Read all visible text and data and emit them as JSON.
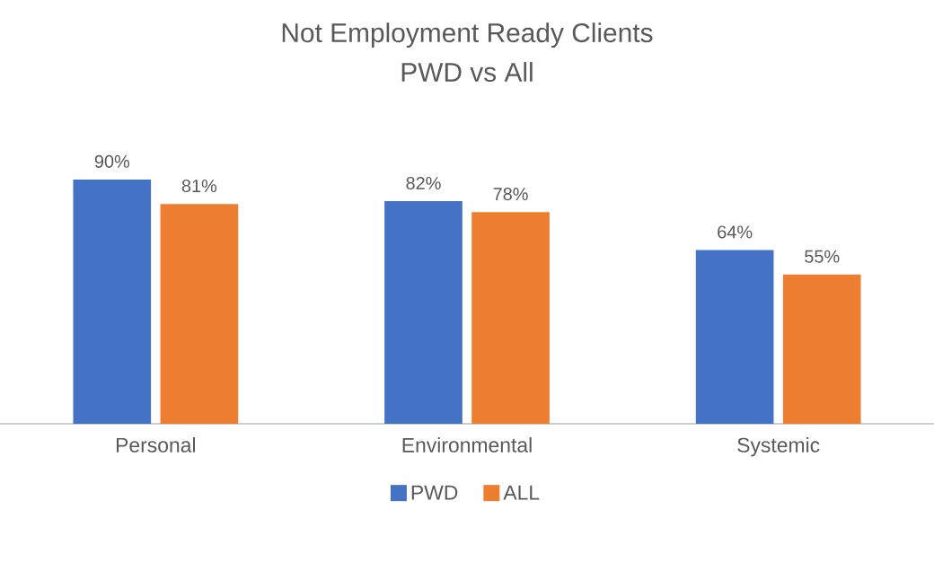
{
  "chart_data": {
    "type": "bar",
    "title": "Not Employment Ready Clients",
    "subtitle": "PWD vs All",
    "categories": [
      "Personal",
      "Environmental",
      "Systemic"
    ],
    "series": [
      {
        "name": "PWD",
        "color": "#4472c4",
        "values": [
          90,
          82,
          64
        ],
        "value_labels": [
          "90%",
          "82%",
          "64%"
        ]
      },
      {
        "name": "ALL",
        "color": "#ed7d31",
        "values": [
          81,
          78,
          55
        ],
        "value_labels": [
          "81%",
          "78%",
          "55%"
        ]
      }
    ],
    "legend": "bottom"
  }
}
